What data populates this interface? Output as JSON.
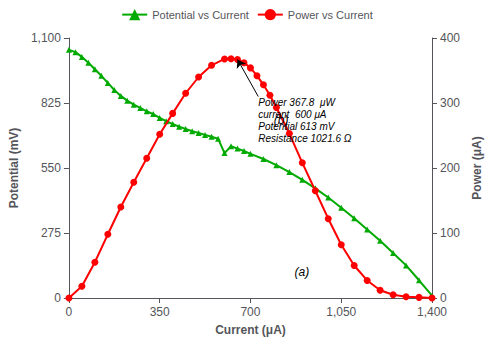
{
  "chart_data": {
    "type": "line",
    "xlabel": "Current (μA)",
    "ylabel": "Potential (mV)",
    "y2label": "Power (μA)",
    "xlim": [
      0,
      1400
    ],
    "xticks": [
      0,
      350,
      700,
      1050,
      1400
    ],
    "ylim": [
      0,
      1100
    ],
    "yticks": [
      0,
      275,
      550,
      825,
      1100
    ],
    "y2lim": [
      0,
      400
    ],
    "y2ticks": [
      0,
      100,
      200,
      300,
      400
    ],
    "grid": false,
    "legend": "top",
    "series": [
      {
        "name": "Potential vs Current",
        "color": "#00aa00",
        "marker": "triangle",
        "x": [
          0,
          25,
          50,
          75,
          100,
          125,
          150,
          175,
          200,
          225,
          250,
          275,
          300,
          325,
          350,
          375,
          400,
          425,
          450,
          475,
          500,
          525,
          550,
          575,
          600,
          625,
          650,
          675,
          700,
          750,
          800,
          850,
          900,
          950,
          1000,
          1050,
          1100,
          1150,
          1200,
          1250,
          1300,
          1350,
          1400
        ],
        "values": [
          1050,
          1040,
          1020,
          995,
          968,
          940,
          910,
          880,
          855,
          835,
          818,
          804,
          790,
          778,
          762,
          748,
          736,
          725,
          715,
          706,
          698,
          690,
          682,
          674,
          613,
          642,
          632,
          622,
          610,
          588,
          562,
          533,
          500,
          464,
          425,
          382,
          337,
          290,
          242,
          190,
          138,
          75,
          10
        ]
      },
      {
        "name": "Power vs Current",
        "color": "red",
        "marker": "circle",
        "axis": "y2",
        "x": [
          0,
          50,
          100,
          150,
          200,
          250,
          300,
          350,
          400,
          450,
          500,
          550,
          600,
          625,
          650,
          675,
          700,
          725,
          750,
          775,
          800,
          850,
          900,
          950,
          1000,
          1050,
          1100,
          1150,
          1200,
          1250,
          1300,
          1350,
          1400
        ],
        "values": [
          0,
          18,
          55,
          98,
          140,
          178,
          215,
          252,
          284,
          315,
          340,
          358,
          367.8,
          368,
          367,
          362,
          354,
          342,
          328,
          312,
          293,
          253,
          208,
          165,
          122,
          82,
          50,
          27,
          12,
          5,
          2,
          1,
          0
        ]
      }
    ],
    "annotations": [
      {
        "text": "Power 367.8  μW\ncurrent  600 μA\nPotential 613 mV\nResistance 1021.6 Ω",
        "x": 730,
        "y": 310,
        "axis": "y2",
        "arrow_x": 650,
        "arrow_y": 367
      },
      {
        "text": "(a)",
        "x": 870,
        "y": 85
      },
      {
        "text": "(b)",
        "x": 790,
        "y": 265,
        "axis": "y2"
      }
    ]
  }
}
